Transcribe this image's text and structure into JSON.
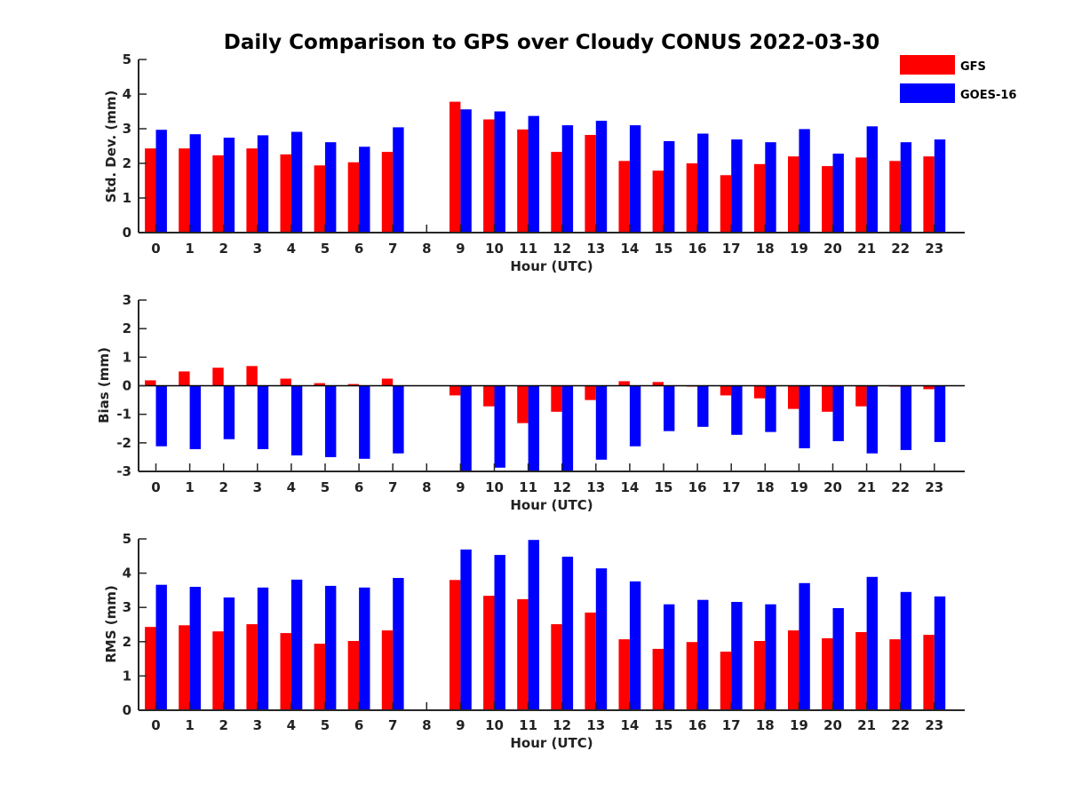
{
  "figure_title": "Daily Comparison to GPS over Cloudy CONUS 2022-03-30",
  "legend": [
    {
      "label": "GFS",
      "color": "#ff0000"
    },
    {
      "label": "GOES-16",
      "color": "#0000ff"
    }
  ],
  "chart_data": [
    {
      "type": "bar",
      "xlabel": "Hour (UTC)",
      "ylabel": "Std. Dev. (mm)",
      "ylim": [
        0,
        5
      ],
      "yticks": [
        0,
        1,
        2,
        3,
        4,
        5
      ],
      "categories": [
        "0",
        "1",
        "2",
        "3",
        "4",
        "5",
        "6",
        "7",
        "8",
        "9",
        "10",
        "11",
        "12",
        "13",
        "14",
        "15",
        "16",
        "17",
        "18",
        "19",
        "20",
        "21",
        "22",
        "23"
      ],
      "series": [
        {
          "name": "GFS",
          "color": "#ff0000",
          "values": [
            2.43,
            2.43,
            2.23,
            2.43,
            2.26,
            1.94,
            2.03,
            2.33,
            null,
            3.78,
            3.27,
            2.98,
            2.33,
            2.82,
            2.07,
            1.79,
            2.0,
            1.66,
            1.98,
            2.2,
            1.92,
            2.17,
            2.07,
            2.2
          ]
        },
        {
          "name": "GOES-16",
          "color": "#0000ff",
          "values": [
            2.97,
            2.84,
            2.74,
            2.81,
            2.91,
            2.61,
            2.48,
            3.04,
            null,
            3.56,
            3.5,
            3.37,
            3.1,
            3.23,
            3.1,
            2.64,
            2.86,
            2.69,
            2.61,
            2.99,
            2.28,
            3.07,
            2.61,
            2.69
          ]
        }
      ]
    },
    {
      "type": "bar",
      "xlabel": "Hour (UTC)",
      "ylabel": "Bias (mm)",
      "ylim": [
        -3,
        3
      ],
      "yticks": [
        -3,
        -2,
        -1,
        0,
        1,
        2,
        3
      ],
      "categories": [
        "0",
        "1",
        "2",
        "3",
        "4",
        "5",
        "6",
        "7",
        "8",
        "9",
        "10",
        "11",
        "12",
        "13",
        "14",
        "15",
        "16",
        "17",
        "18",
        "19",
        "20",
        "21",
        "22",
        "23"
      ],
      "series": [
        {
          "name": "GFS",
          "color": "#ff0000",
          "values": [
            0.19,
            0.5,
            0.63,
            0.69,
            0.25,
            0.09,
            0.06,
            0.25,
            null,
            -0.34,
            -0.72,
            -1.31,
            -0.91,
            -0.5,
            0.16,
            0.13,
            -0.03,
            -0.34,
            -0.44,
            -0.81,
            -0.91,
            -0.72,
            -0.03,
            -0.12
          ]
        },
        {
          "name": "GOES-16",
          "color": "#0000ff",
          "values": [
            -2.12,
            -2.22,
            -1.87,
            -2.22,
            -2.44,
            -2.5,
            -2.56,
            -2.37,
            null,
            -3.0,
            -2.87,
            -3.0,
            -3.0,
            -2.59,
            -2.12,
            -1.59,
            -1.44,
            -1.72,
            -1.62,
            -2.19,
            -1.94,
            -2.37,
            -2.25,
            -1.97
          ]
        }
      ]
    },
    {
      "type": "bar",
      "xlabel": "Hour (UTC)",
      "ylabel": "RMS (mm)",
      "ylim": [
        0,
        5
      ],
      "yticks": [
        0,
        1,
        2,
        3,
        4,
        5
      ],
      "categories": [
        "0",
        "1",
        "2",
        "3",
        "4",
        "5",
        "6",
        "7",
        "8",
        "9",
        "10",
        "11",
        "12",
        "13",
        "14",
        "15",
        "16",
        "17",
        "18",
        "19",
        "20",
        "21",
        "22",
        "23"
      ],
      "series": [
        {
          "name": "GFS",
          "color": "#ff0000",
          "values": [
            2.43,
            2.48,
            2.3,
            2.51,
            2.25,
            1.94,
            2.02,
            2.33,
            null,
            3.8,
            3.34,
            3.24,
            2.51,
            2.85,
            2.07,
            1.79,
            1.99,
            1.71,
            2.02,
            2.33,
            2.1,
            2.28,
            2.07,
            2.2
          ]
        },
        {
          "name": "GOES-16",
          "color": "#0000ff",
          "values": [
            3.66,
            3.6,
            3.29,
            3.58,
            3.81,
            3.63,
            3.58,
            3.86,
            null,
            4.69,
            4.53,
            4.97,
            4.48,
            4.14,
            3.76,
            3.09,
            3.22,
            3.16,
            3.09,
            3.71,
            2.98,
            3.89,
            3.45,
            3.32
          ]
        }
      ]
    }
  ]
}
